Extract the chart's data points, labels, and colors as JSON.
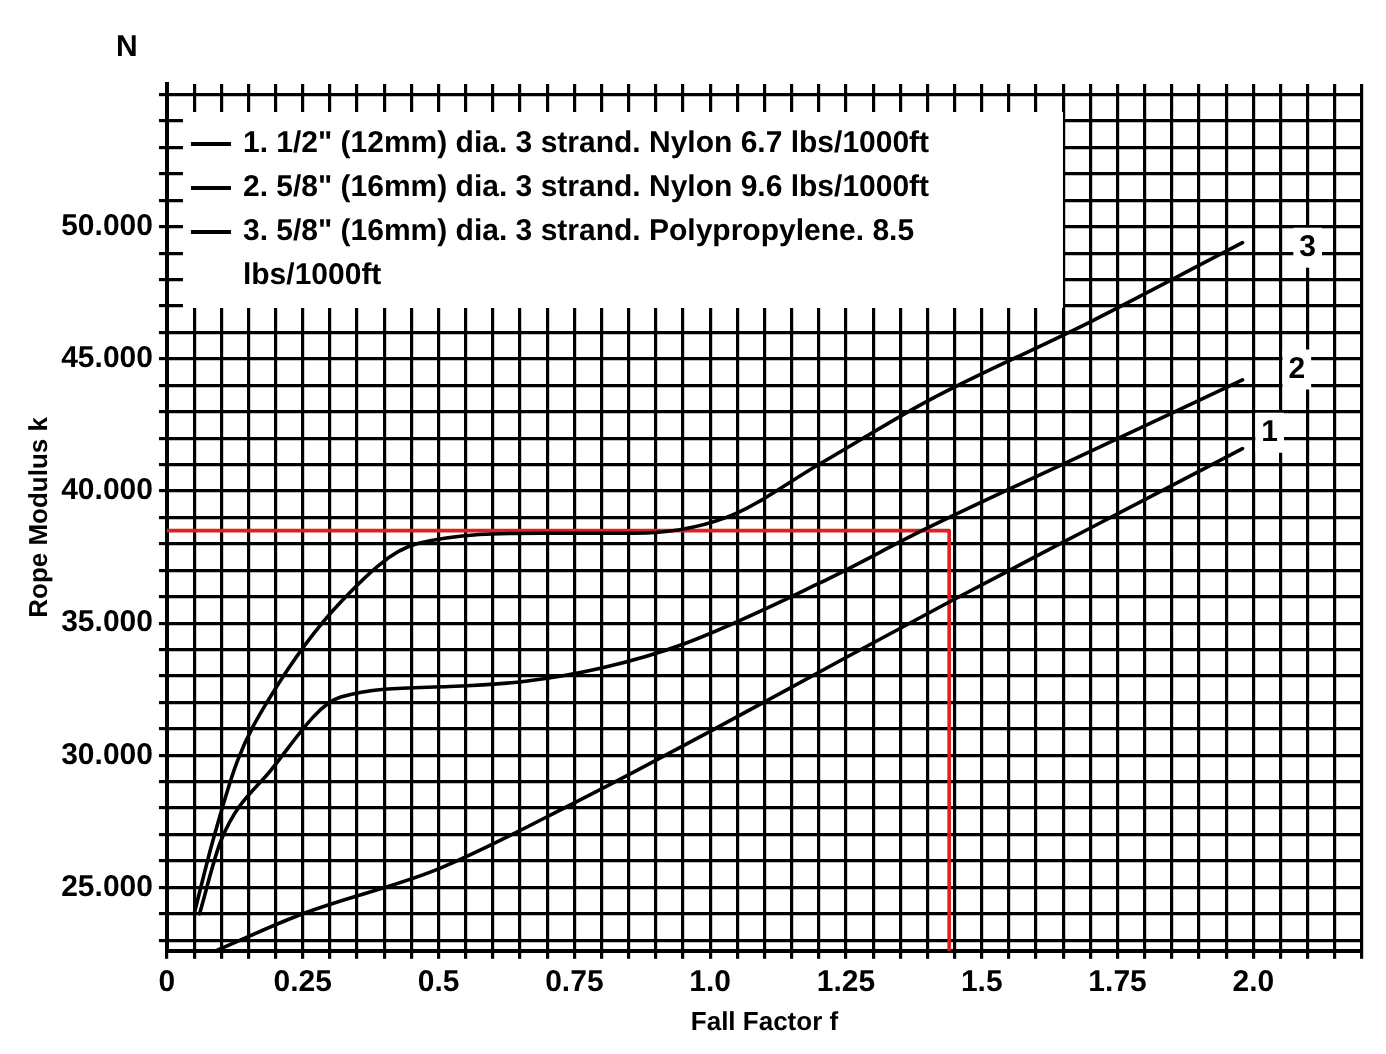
{
  "chart_data": {
    "type": "line",
    "xlabel": "Fall Factor f",
    "ylabel": "Rope Modulus k",
    "annotations": [
      "N",
      {
        "text": "1",
        "x": 2.03,
        "y": 42.2
      },
      {
        "text": "2",
        "x": 2.08,
        "y": 44.6
      },
      {
        "text": "3",
        "x": 2.1,
        "y": 49.2
      }
    ],
    "series": [
      {
        "name": "1. 1/2\" (12mm) dia. 3 strand. Nylon 6.7 lbs/1000ft",
        "color": "#000000",
        "x": [
          0.09,
          0.25,
          0.5,
          0.75,
          1.0,
          1.25,
          1.44,
          1.7,
          1.98
        ],
        "values": [
          22.6,
          24.0,
          25.7,
          28.2,
          30.9,
          33.7,
          35.8,
          38.6,
          41.6
        ]
      },
      {
        "name": "2. 5/8\" (16mm) dia. 3 strand. Nylon 9.6 lbs/1000ft",
        "color": "#000000",
        "x": [
          0.06,
          0.1,
          0.19,
          0.32,
          0.52,
          0.66,
          0.8,
          0.95,
          1.2,
          1.4,
          1.7,
          1.98
        ],
        "values": [
          24.0,
          26.8,
          29.4,
          32.2,
          32.6,
          32.8,
          33.3,
          34.2,
          36.5,
          38.6,
          41.5,
          44.2
        ]
      },
      {
        "name": "3. 5/8\" (16mm) dia. 3 strand. Polypropylene. 8.5 lbs/1000ft",
        "color": "#000000",
        "x": [
          0.05,
          0.085,
          0.13,
          0.19,
          0.32,
          0.46,
          0.69,
          0.86,
          1.03,
          1.2,
          1.4,
          1.7,
          1.98
        ],
        "values": [
          24.0,
          26.8,
          29.8,
          32.2,
          35.8,
          38.0,
          38.4,
          38.4,
          39.0,
          41.0,
          43.4,
          46.4,
          49.4
        ]
      },
      {
        "color": "#e02020",
        "x": [
          0,
          1.44,
          1.44
        ],
        "values": [
          38.5,
          38.5,
          22.6
        ]
      }
    ],
    "xlim": [
      0,
      2.2
    ],
    "ylim": [
      22.6,
      55.4
    ],
    "xticks": [
      0,
      {
        "value": 0.05,
        "label": null
      },
      {
        "value": 0.1,
        "label": null
      },
      {
        "value": 0.15,
        "label": null
      },
      {
        "value": 0.2,
        "label": null
      },
      0.25,
      {
        "value": 0.3,
        "label": null
      },
      {
        "value": 0.35,
        "label": null
      },
      {
        "value": 0.4,
        "label": null
      },
      {
        "value": 0.45,
        "label": null
      },
      0.5,
      {
        "value": 0.55,
        "label": null
      },
      {
        "value": 0.6,
        "label": null
      },
      {
        "value": 0.65,
        "label": null
      },
      {
        "value": 0.7,
        "label": null
      },
      0.75,
      {
        "value": 0.8,
        "label": null
      },
      {
        "value": 0.85,
        "label": null
      },
      {
        "value": 0.9,
        "label": null
      },
      {
        "value": 0.95,
        "label": null
      },
      {
        "value": 1.0,
        "label": "1.0"
      },
      {
        "value": 1.05,
        "label": null
      },
      {
        "value": 1.1,
        "label": null
      },
      {
        "value": 1.15,
        "label": null
      },
      {
        "value": 1.2,
        "label": null
      },
      1.25,
      {
        "value": 1.3,
        "label": null
      },
      {
        "value": 1.35,
        "label": null
      },
      {
        "value": 1.4,
        "label": null
      },
      {
        "value": 1.45,
        "label": null
      },
      1.5,
      {
        "value": 1.55,
        "label": null
      },
      {
        "value": 1.6,
        "label": null
      },
      {
        "value": 1.65,
        "label": null
      },
      {
        "value": 1.7,
        "label": null
      },
      1.75,
      {
        "value": 1.8,
        "label": null
      },
      {
        "value": 1.85,
        "label": null
      },
      {
        "value": 1.9,
        "label": null
      },
      {
        "value": 1.95,
        "label": null
      },
      {
        "value": 2.0,
        "label": "2.0"
      },
      {
        "value": 2.05,
        "label": null
      },
      {
        "value": 2.1,
        "label": null
      },
      {
        "value": 2.15,
        "label": null
      },
      {
        "value": 2.2,
        "label": null
      }
    ],
    "yticks": [
      {
        "value": 23,
        "label": null
      },
      {
        "value": 24,
        "label": null
      },
      {
        "value": 25,
        "label": "25.000"
      },
      {
        "value": 26,
        "label": null
      },
      {
        "value": 27,
        "label": null
      },
      {
        "value": 28,
        "label": null
      },
      {
        "value": 29,
        "label": null
      },
      {
        "value": 30,
        "label": "30.000"
      },
      {
        "value": 31,
        "label": null
      },
      {
        "value": 32,
        "label": null
      },
      {
        "value": 33,
        "label": null
      },
      {
        "value": 34,
        "label": null
      },
      {
        "value": 35,
        "label": "35.000"
      },
      {
        "value": 36,
        "label": null
      },
      {
        "value": 37,
        "label": null
      },
      {
        "value": 38,
        "label": null
      },
      {
        "value": 39,
        "label": null
      },
      {
        "value": 40,
        "label": "40.000"
      },
      {
        "value": 41,
        "label": null
      },
      {
        "value": 42,
        "label": null
      },
      {
        "value": 43,
        "label": null
      },
      {
        "value": 44,
        "label": null
      },
      {
        "value": 45,
        "label": "45.000"
      },
      {
        "value": 46,
        "label": null
      },
      {
        "value": 47,
        "label": null
      },
      {
        "value": 48,
        "label": null
      },
      {
        "value": 49,
        "label": null
      },
      {
        "value": 50,
        "label": "50.000"
      },
      {
        "value": 51,
        "label": null
      },
      {
        "value": 52,
        "label": null
      },
      {
        "value": 53,
        "label": null
      },
      {
        "value": 54,
        "label": null
      },
      {
        "value": 55,
        "label": null
      }
    ],
    "grid": true,
    "legend": "top left",
    "marker": "none",
    "line_style": "solid"
  }
}
